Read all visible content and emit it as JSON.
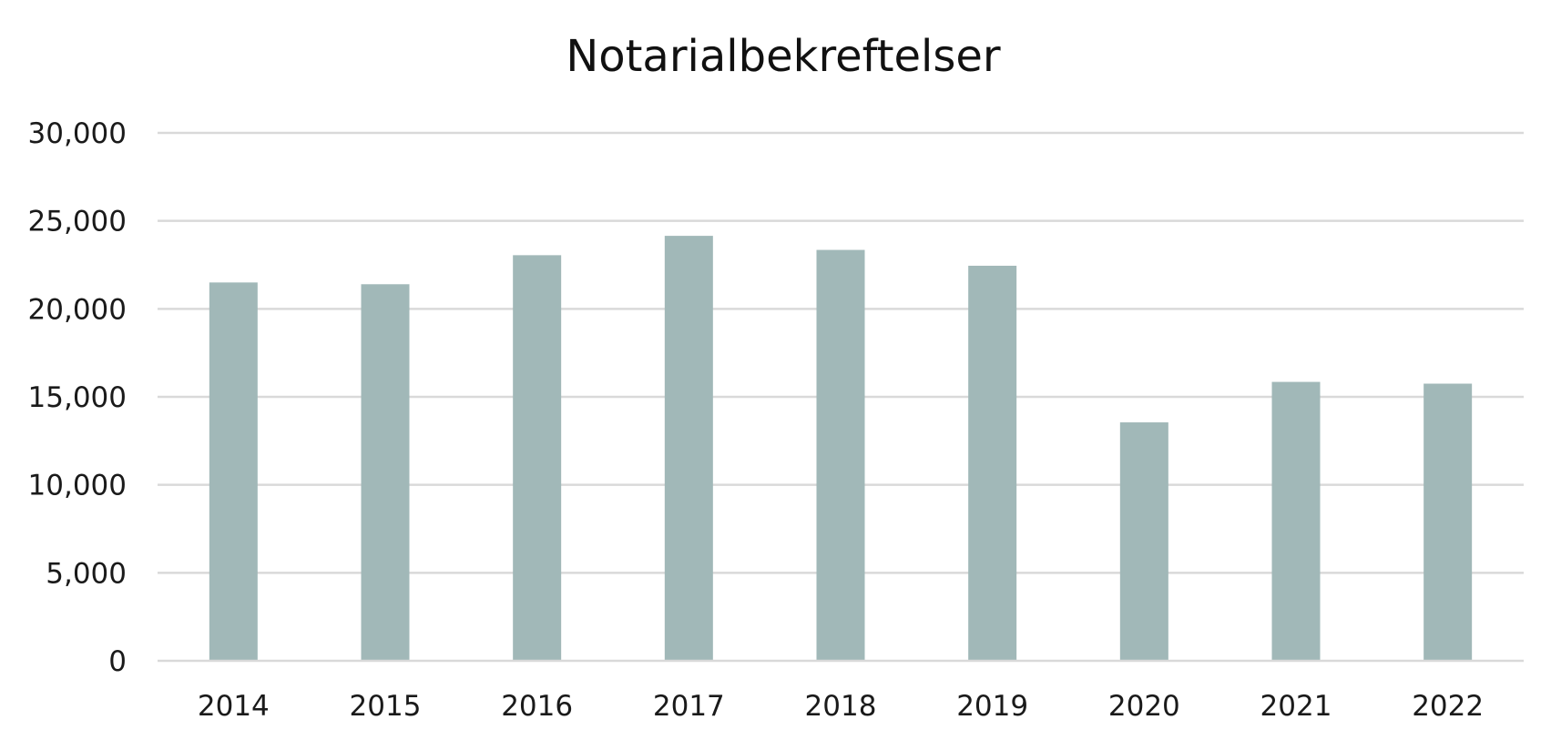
{
  "chart_data": {
    "type": "bar",
    "title": "Notarialbekreftelser",
    "xlabel": "",
    "ylabel": "",
    "categories": [
      "2014",
      "2015",
      "2016",
      "2017",
      "2018",
      "2019",
      "2020",
      "2021",
      "2022"
    ],
    "values": [
      21500,
      21400,
      23050,
      24150,
      23350,
      22450,
      13550,
      15850,
      15750
    ],
    "ylim": [
      0,
      30000
    ],
    "yticks": [
      0,
      5000,
      10000,
      15000,
      20000,
      25000,
      30000
    ],
    "ytick_labels": [
      "0",
      "5,000",
      "10,000",
      "15,000",
      "20,000",
      "25,000",
      "30,000"
    ],
    "grid": true,
    "legend": "none",
    "colors": {
      "bar": "#a1b8b8",
      "grid": "#d9d9d9",
      "text": "#1a1a1a"
    }
  }
}
